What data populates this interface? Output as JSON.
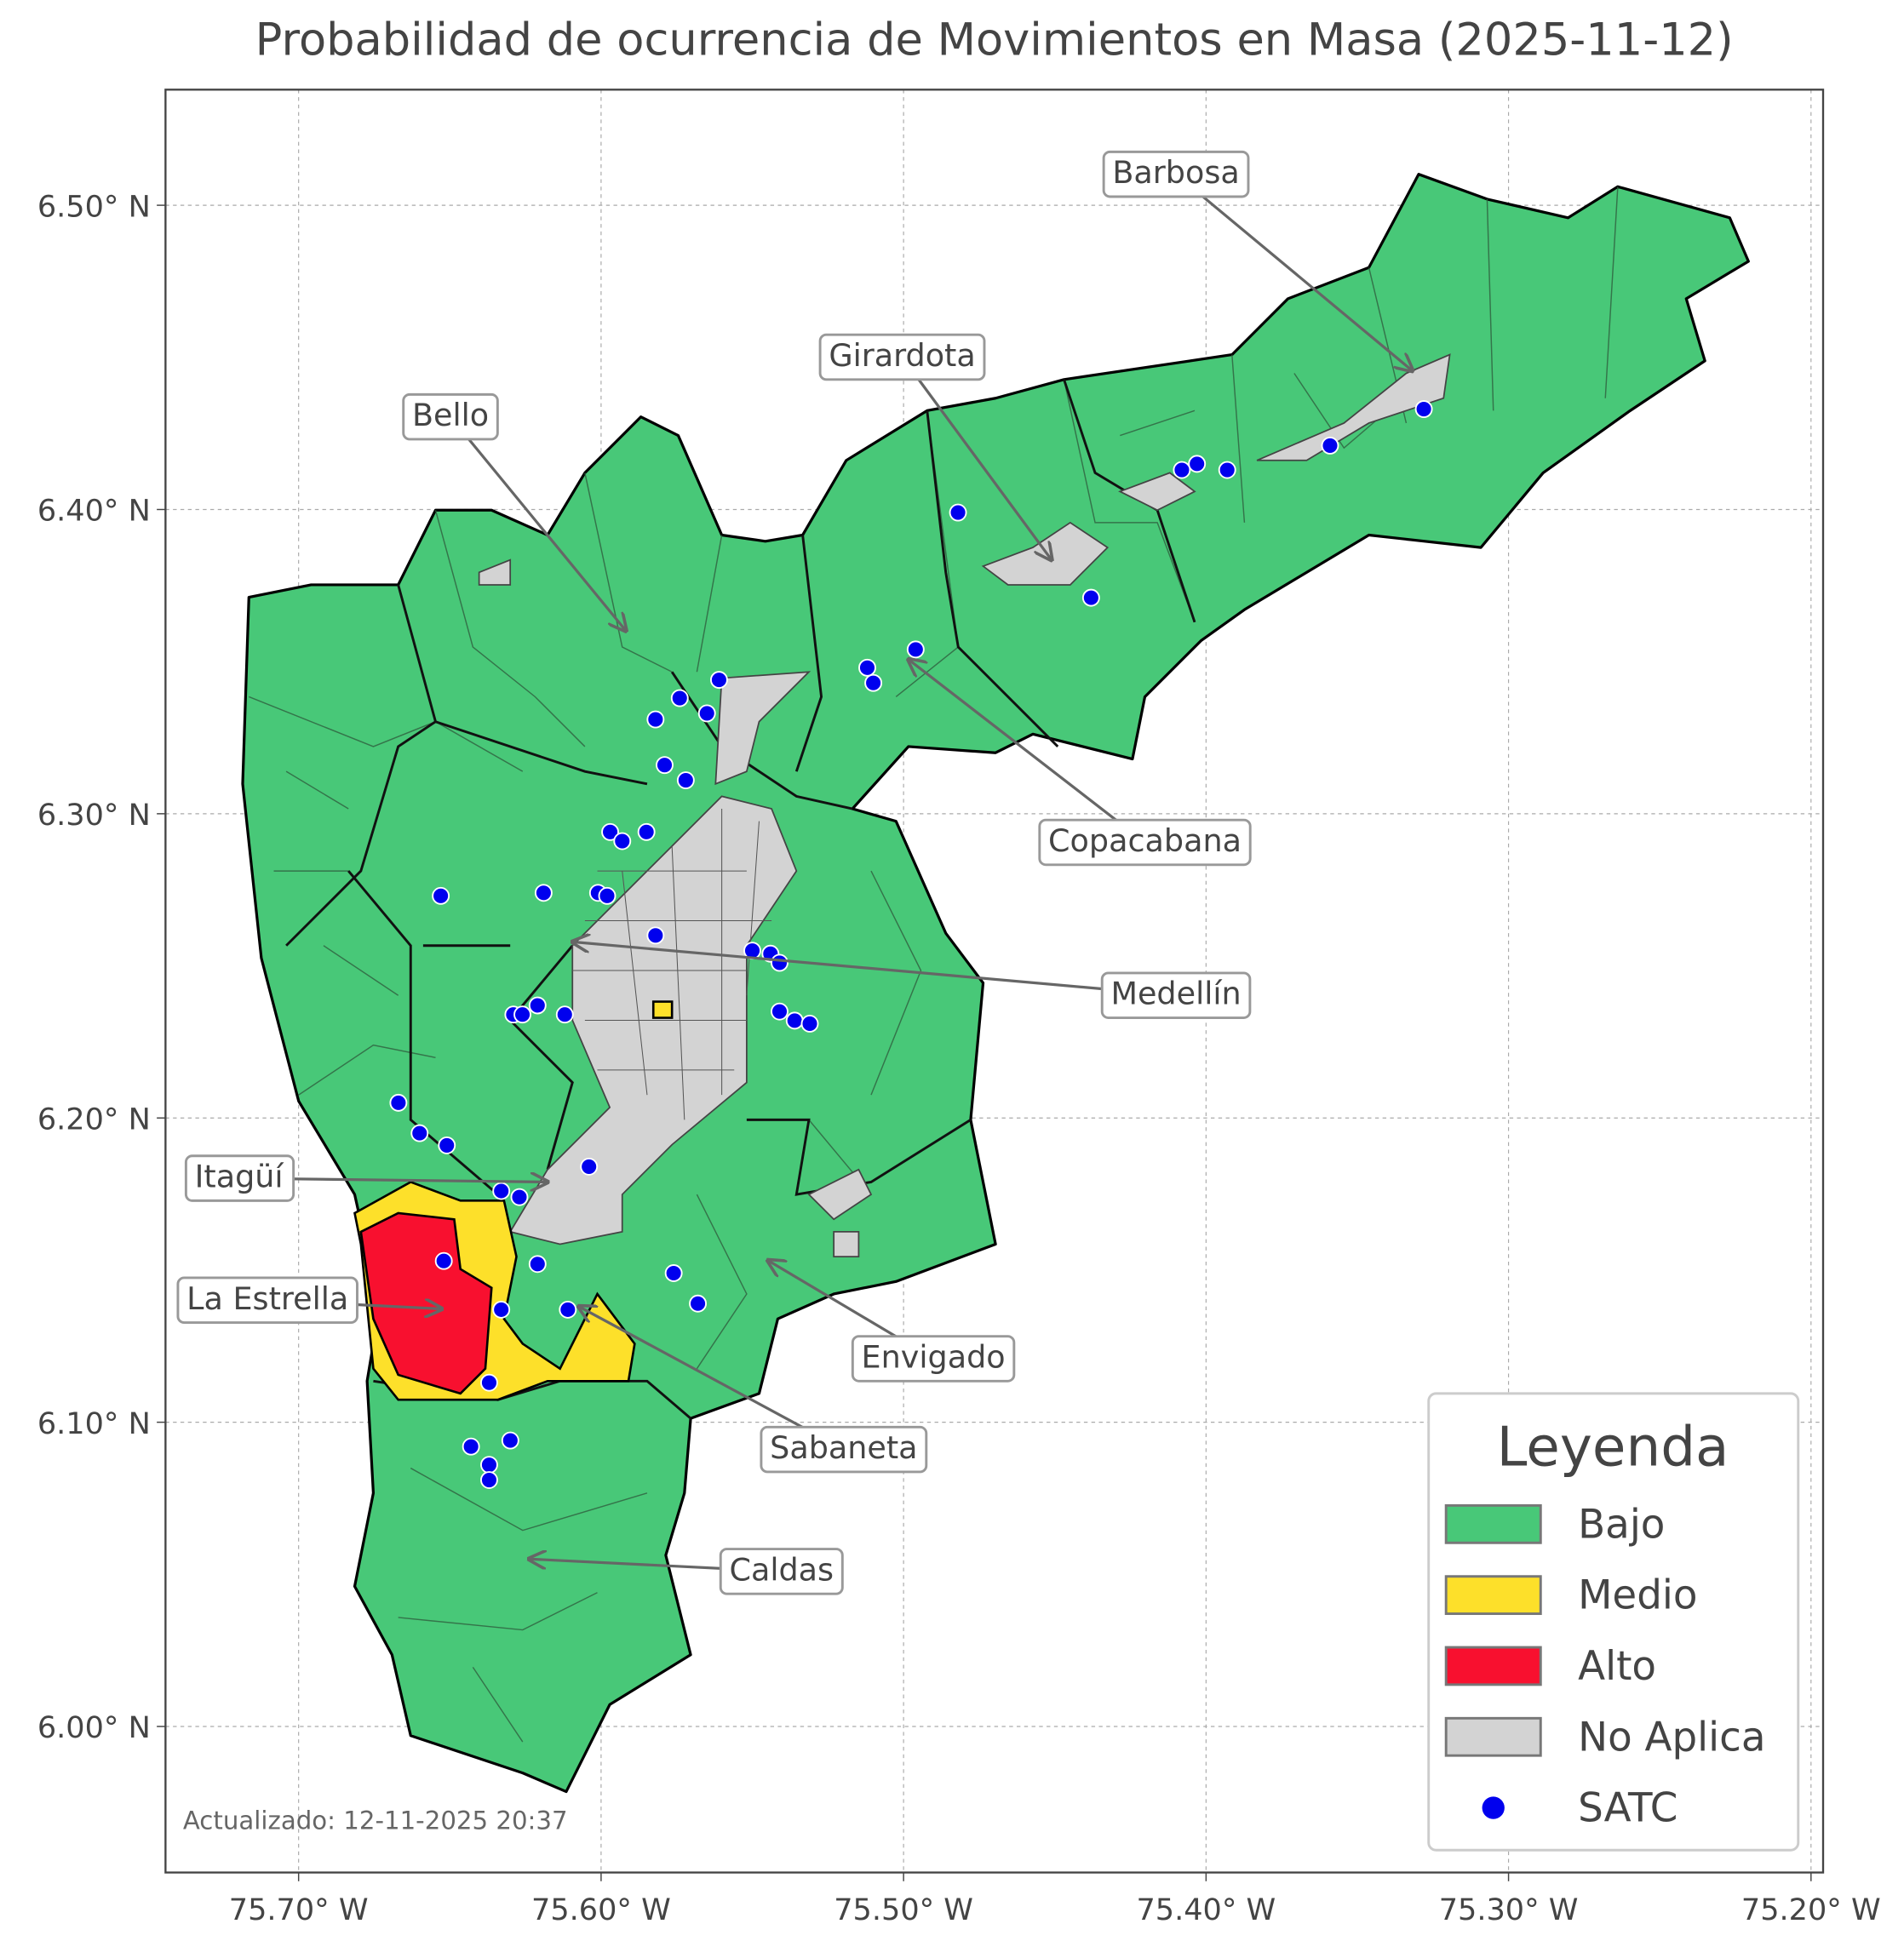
{
  "map": {
    "title": "Probabilidad de ocurrencia de Movimientos en Masa (2025-11-12)",
    "xlim": [
      -75.744,
      -75.196
    ],
    "ylim": [
      5.952,
      6.538
    ],
    "xticks": [
      {
        "value": -75.7,
        "label": "75.70° W"
      },
      {
        "value": -75.6,
        "label": "75.60° W"
      },
      {
        "value": -75.5,
        "label": "75.50° W"
      },
      {
        "value": -75.4,
        "label": "75.40° W"
      },
      {
        "value": -75.3,
        "label": "75.30° W"
      },
      {
        "value": -75.2,
        "label": "75.20° W"
      }
    ],
    "yticks": [
      {
        "value": 6.0,
        "label": "6.00° N"
      },
      {
        "value": 6.1,
        "label": "6.10° N"
      },
      {
        "value": 6.2,
        "label": "6.20° N"
      },
      {
        "value": 6.3,
        "label": "6.30° N"
      },
      {
        "value": 6.4,
        "label": "6.40° N"
      },
      {
        "value": 6.5,
        "label": "6.50° N"
      }
    ],
    "grid": true,
    "municipalities": [
      "Barbosa",
      "Girardota",
      "Bello",
      "Copacabana",
      "Medellín",
      "Itagüí",
      "La Estrella",
      "Envigado",
      "Sabaneta",
      "Caldas"
    ],
    "legend": {
      "title": "Leyenda",
      "corner": "lower right",
      "entries": [
        {
          "label": "Bajo",
          "color": "#48c878"
        },
        {
          "label": "Medio",
          "color": "#fde02a"
        },
        {
          "label": "Alto",
          "color": "#f8102f"
        },
        {
          "label": "No Aplica",
          "color": "#d3d3d3"
        },
        {
          "label": "SATC",
          "color": "#0000ee"
        }
      ]
    },
    "satc": {
      "lon": [
        -75.328,
        -75.359,
        -75.408,
        -75.403,
        -75.393,
        -75.482,
        -75.438,
        -75.496,
        -75.512,
        -75.51,
        -75.561,
        -75.574,
        -75.582,
        -75.565,
        -75.579,
        -75.572,
        -75.597,
        -75.593,
        -75.585,
        -75.653,
        -75.619,
        -75.601,
        -75.598,
        -75.582,
        -75.55,
        -75.544,
        -75.541,
        -75.541,
        -75.536,
        -75.531,
        -75.621,
        -75.629,
        -75.626,
        -75.612,
        -75.667,
        -75.66,
        -75.651,
        -75.604,
        -75.633,
        -75.627,
        -75.652,
        -75.621,
        -75.576,
        -75.568,
        -75.633,
        -75.611,
        -75.637,
        -75.643,
        -75.63,
        -75.637,
        -75.637
      ],
      "lat": [
        6.433,
        6.421,
        6.413,
        6.415,
        6.413,
        6.399,
        6.371,
        6.354,
        6.348,
        6.343,
        6.344,
        6.338,
        6.331,
        6.333,
        6.316,
        6.311,
        6.294,
        6.291,
        6.294,
        6.273,
        6.274,
        6.274,
        6.273,
        6.26,
        6.255,
        6.254,
        6.251,
        6.235,
        6.232,
        6.231,
        6.237,
        6.234,
        6.234,
        6.234,
        6.205,
        6.195,
        6.191,
        6.184,
        6.176,
        6.174,
        6.153,
        6.152,
        6.149,
        6.139,
        6.137,
        6.137,
        6.113,
        6.092,
        6.094,
        6.086,
        6.081
      ]
    },
    "footer": "Actualizado: 12-11-2025 20:37"
  }
}
